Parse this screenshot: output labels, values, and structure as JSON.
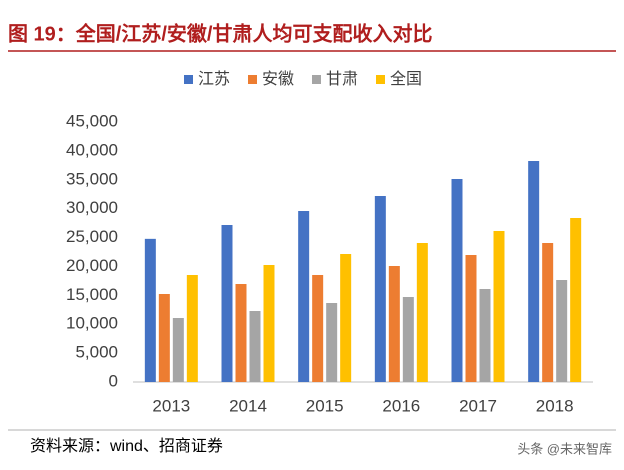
{
  "chart_data": {
    "type": "bar",
    "title": "图 19：全国/江苏/安徽/甘肃人均可支配收入对比",
    "source": "资料来源：wind、招商证券",
    "watermark": "头条 @未来智库",
    "categories": [
      "2013",
      "2014",
      "2015",
      "2016",
      "2017",
      "2018"
    ],
    "series": [
      {
        "name": "江苏",
        "color": "#4472c4",
        "values": [
          24776,
          27173,
          29596,
          32192,
          35135,
          38250
        ]
      },
      {
        "name": "安徽",
        "color": "#ed7d31",
        "values": [
          15230,
          16960,
          18520,
          20077,
          21980,
          24058
        ]
      },
      {
        "name": "甘肃",
        "color": "#a5a5a5",
        "values": [
          11077,
          12288,
          13673,
          14711,
          16096,
          17654
        ]
      },
      {
        "name": "全国",
        "color": "#ffc000",
        "values": [
          18519,
          20250,
          22154,
          24058,
          26135,
          28385
        ]
      }
    ],
    "ylim": [
      0,
      45000
    ],
    "yticks": [
      0,
      {
        "value": 5000,
        "label": "5,000"
      },
      {
        "value": 10000,
        "label": "10,000"
      },
      {
        "value": 15000,
        "label": "15,000"
      },
      {
        "value": 20000,
        "label": "20,000"
      },
      {
        "value": 25000,
        "label": "25,000"
      },
      {
        "value": 30000,
        "label": "30,000"
      },
      {
        "value": 35000,
        "label": "35,000"
      },
      {
        "value": 40000,
        "label": "40,000"
      },
      {
        "value": 45000,
        "label": "45,000"
      }
    ],
    "grid": false,
    "legend": "top"
  }
}
